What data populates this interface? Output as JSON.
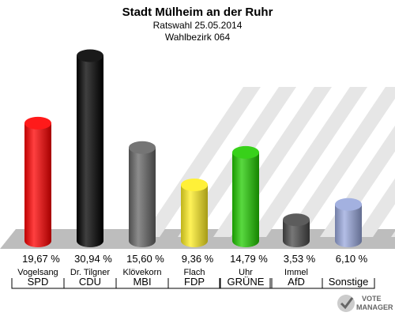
{
  "chart_data": {
    "type": "bar",
    "title": "Stadt Mülheim an der Ruhr",
    "subtitle1": "Ratswahl 25.05.2014",
    "subtitle2": "Wahlbezirk 064",
    "categories": [
      "SPD",
      "CDU",
      "MBI",
      "FDP",
      "GRÜNE",
      "AfD",
      "Sonstige"
    ],
    "candidates": [
      "Vogelsang",
      "Dr. Tilgner",
      "Klövekorn",
      "Flach",
      "Uhr",
      "Immel",
      ""
    ],
    "values": [
      19.67,
      30.94,
      15.6,
      9.36,
      14.79,
      3.53,
      6.1
    ],
    "value_labels": [
      "19,67 %",
      "30,94 %",
      "15,60 %",
      "9,36 %",
      "14,79 %",
      "3,53 %",
      "6,10 %"
    ],
    "colors": [
      "#ff0000",
      "#000000",
      "#666666",
      "#ffee22",
      "#22cc00",
      "#4a4a4a",
      "#99a8dd"
    ],
    "ylim": [
      0,
      31
    ],
    "grid": false
  },
  "logo": {
    "line1": "VOTE",
    "line2": "MANAGER"
  }
}
